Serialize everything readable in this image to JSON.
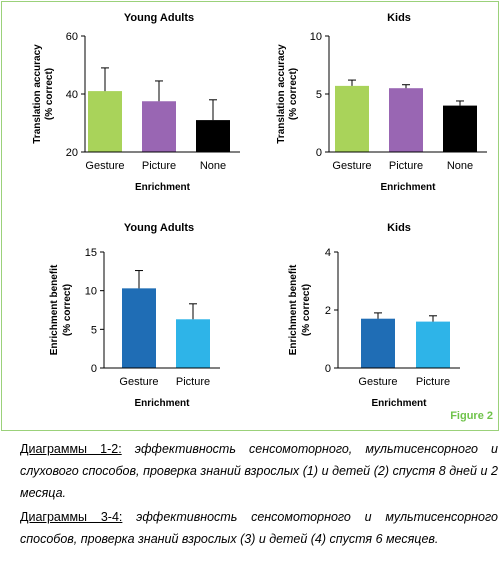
{
  "figure_label": "Figure 2",
  "chart_data": [
    {
      "type": "bar",
      "title": "Young Adults",
      "xlabel": "Enrichment",
      "ylabel": [
        "Translation accuracy",
        "(% correct)"
      ],
      "ylim": [
        20,
        60
      ],
      "yticks": [
        20,
        40,
        60
      ],
      "categories": [
        "Gesture",
        "Picture",
        "None"
      ],
      "values": [
        41,
        37.5,
        31
      ],
      "errors": [
        8,
        7,
        7
      ],
      "colors": [
        "#a9d35a",
        "#9966b3",
        "#000000"
      ]
    },
    {
      "type": "bar",
      "title": "Kids",
      "xlabel": "Enrichment",
      "ylabel": [
        "Translation accuracy",
        "(% correct)"
      ],
      "ylim": [
        0,
        10
      ],
      "yticks": [
        0,
        5,
        10
      ],
      "categories": [
        "Gesture",
        "Picture",
        "None"
      ],
      "values": [
        5.7,
        5.5,
        4
      ],
      "errors": [
        0.5,
        0.3,
        0.4
      ],
      "colors": [
        "#a9d35a",
        "#9966b3",
        "#000000"
      ]
    },
    {
      "type": "bar",
      "title": "Young Adults",
      "xlabel": "Enrichment",
      "ylabel": [
        "Enrichment benefit",
        "(% correct)"
      ],
      "ylim": [
        0,
        15
      ],
      "yticks": [
        0,
        5,
        10,
        15
      ],
      "categories": [
        "Gesture",
        "Picture"
      ],
      "values": [
        10.3,
        6.3
      ],
      "errors": [
        2.3,
        2
      ],
      "colors": [
        "#1f6db5",
        "#2eb4e8"
      ]
    },
    {
      "type": "bar",
      "title": "Kids",
      "xlabel": "Enrichment",
      "ylabel": [
        "Enrichment benefit",
        "(% correct)"
      ],
      "ylim": [
        0,
        4
      ],
      "yticks": [
        0,
        2,
        4
      ],
      "categories": [
        "Gesture",
        "Picture"
      ],
      "values": [
        1.7,
        1.6
      ],
      "errors": [
        0.2,
        0.2
      ],
      "colors": [
        "#1f6db5",
        "#2eb4e8"
      ]
    }
  ],
  "captions": [
    {
      "label": "Диаграммы 1-2:",
      "text": "эффективность сенсомоторного, мультисенсорного и слухового способов, проверка знаний взрослых (1) и детей (2) спустя 8 дней и 2 месяца."
    },
    {
      "label": "Диаграммы 3-4:",
      "text": "эффективность сенсомоторного и мультисенсорного способов, проверка знаний взрослых (3) и детей (4) спустя 6 месяцев."
    }
  ]
}
